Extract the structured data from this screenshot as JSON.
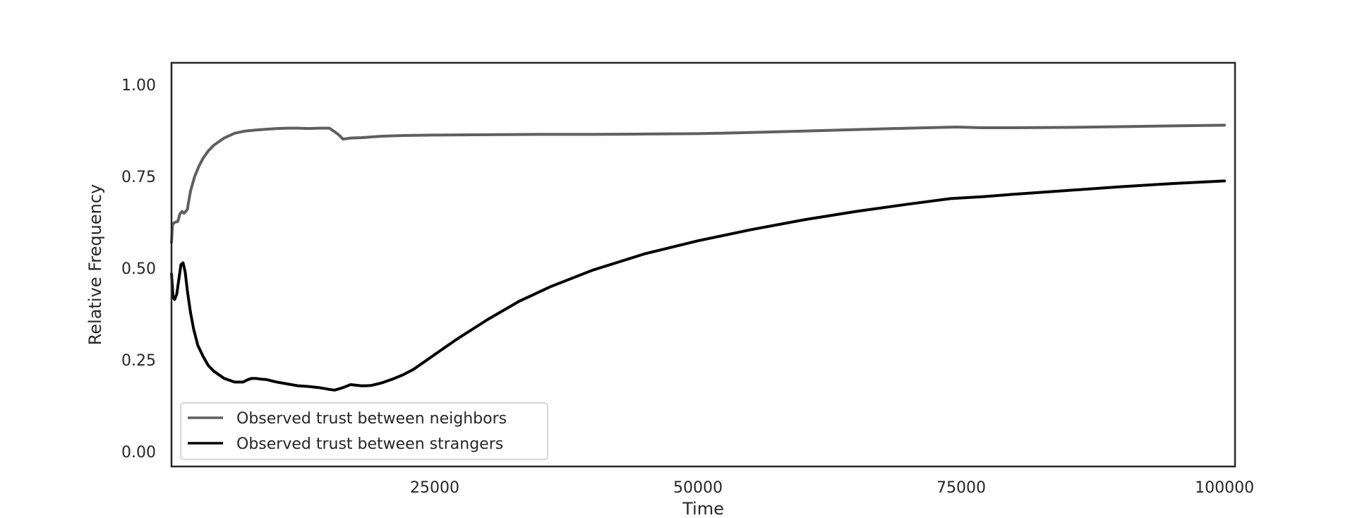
{
  "chart_data": {
    "type": "line",
    "title": "",
    "xlabel": "Time",
    "ylabel": "Relative Frequency",
    "xlim": [
      0,
      101000
    ],
    "ylim": [
      -0.04,
      1.06
    ],
    "grid": false,
    "x_ticks": [
      25000,
      50000,
      75000,
      100000
    ],
    "x_tick_labels": [
      "25000",
      "50000",
      "75000",
      "100000"
    ],
    "y_ticks": [
      0.0,
      0.25,
      0.5,
      0.75,
      1.0
    ],
    "y_tick_labels": [
      "0.00",
      "0.25",
      "0.50",
      "0.75",
      "1.00"
    ],
    "legend": {
      "location": "lower-left"
    },
    "series": [
      {
        "name": "Observed trust between neighbors",
        "color": "#5f5f5f",
        "x": [
          0,
          100,
          300,
          600,
          800,
          1000,
          1200,
          1500,
          1800,
          2200,
          2600,
          3000,
          3500,
          4000,
          4500,
          5000,
          6000,
          7000,
          8000,
          9000,
          10000,
          11000,
          12000,
          13000,
          14000,
          15000,
          15800,
          16300,
          17000,
          18000,
          19000,
          20000,
          22000,
          25000,
          30000,
          35000,
          40000,
          45000,
          50000,
          55000,
          60000,
          65000,
          70000,
          74500,
          77000,
          80000,
          85000,
          90000,
          95000,
          100000
        ],
        "values": [
          0.57,
          0.62,
          0.625,
          0.628,
          0.648,
          0.655,
          0.65,
          0.66,
          0.71,
          0.75,
          0.778,
          0.8,
          0.82,
          0.835,
          0.845,
          0.855,
          0.868,
          0.874,
          0.877,
          0.879,
          0.881,
          0.882,
          0.882,
          0.881,
          0.882,
          0.882,
          0.866,
          0.852,
          0.855,
          0.856,
          0.858,
          0.86,
          0.862,
          0.863,
          0.864,
          0.865,
          0.865,
          0.866,
          0.867,
          0.87,
          0.874,
          0.878,
          0.882,
          0.885,
          0.883,
          0.883,
          0.884,
          0.886,
          0.888,
          0.89
        ]
      },
      {
        "name": "Observed trust between strangers",
        "color": "#000000",
        "x": [
          0,
          150,
          300,
          500,
          700,
          900,
          1100,
          1300,
          1500,
          1800,
          2100,
          2500,
          3000,
          3500,
          4000,
          5000,
          6000,
          6800,
          7200,
          7600,
          8000,
          8500,
          9000,
          10000,
          11000,
          12000,
          13000,
          14000,
          15000,
          15500,
          16300,
          17000,
          18000,
          18500,
          19000,
          20000,
          21000,
          22000,
          23000,
          25000,
          27000,
          30000,
          33000,
          36000,
          40000,
          45000,
          50000,
          55000,
          60000,
          65000,
          70000,
          74000,
          77000,
          80000,
          85000,
          90000,
          95000,
          100000
        ],
        "values": [
          0.485,
          0.42,
          0.415,
          0.43,
          0.47,
          0.51,
          0.515,
          0.49,
          0.44,
          0.38,
          0.335,
          0.29,
          0.26,
          0.235,
          0.22,
          0.2,
          0.19,
          0.19,
          0.196,
          0.2,
          0.2,
          0.198,
          0.197,
          0.19,
          0.185,
          0.18,
          0.178,
          0.175,
          0.17,
          0.168,
          0.175,
          0.183,
          0.18,
          0.18,
          0.181,
          0.188,
          0.198,
          0.21,
          0.225,
          0.265,
          0.305,
          0.36,
          0.41,
          0.45,
          0.495,
          0.54,
          0.575,
          0.605,
          0.632,
          0.655,
          0.675,
          0.69,
          0.695,
          0.702,
          0.712,
          0.722,
          0.731,
          0.738
        ]
      }
    ]
  }
}
